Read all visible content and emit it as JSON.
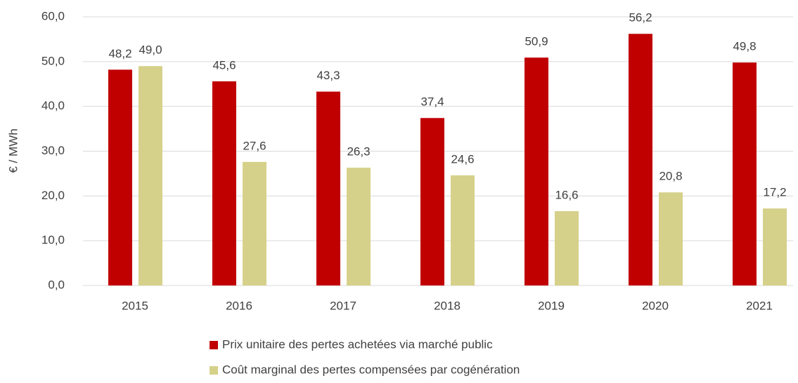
{
  "chart_data": {
    "type": "bar",
    "y_label": "€ / MWh",
    "categories": [
      "2015",
      "2016",
      "2017",
      "2018",
      "2019",
      "2020",
      "2021"
    ],
    "series": [
      {
        "name": "Prix unitaire des pertes achetées via marché public",
        "color": "#c00000",
        "values": [
          48.2,
          45.6,
          43.3,
          37.4,
          50.9,
          56.2,
          49.8
        ],
        "value_labels": [
          "48,2",
          "45,6",
          "43,3",
          "37,4",
          "50,9",
          "56,2",
          "49,8"
        ]
      },
      {
        "name": "Coût marginal des pertes compensées par cogénération",
        "color": "#d6d18a",
        "values": [
          49.0,
          27.6,
          26.3,
          24.6,
          16.6,
          20.8,
          17.2
        ],
        "value_labels": [
          "49,0",
          "27,6",
          "26,3",
          "24,6",
          "16,6",
          "20,8",
          "17,2"
        ]
      }
    ],
    "ylim": [
      0,
      60
    ],
    "yticks": [
      {
        "value": 0,
        "label": "0,0"
      },
      {
        "value": 10,
        "label": "10,0"
      },
      {
        "value": 20,
        "label": "20,0"
      },
      {
        "value": 30,
        "label": "30,0"
      },
      {
        "value": 40,
        "label": "40,0"
      },
      {
        "value": 50,
        "label": "50,0"
      },
      {
        "value": 60,
        "label": "60,0"
      }
    ],
    "grid": true,
    "legend": "bottom"
  }
}
